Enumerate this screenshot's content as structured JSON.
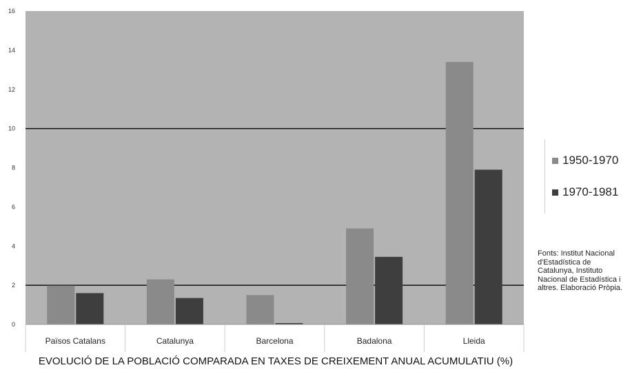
{
  "chart_data": {
    "type": "bar",
    "title": "EVOLUCIÓ DE LA POBLACIÓ COMPARADA EN TAXES DE CREIXEMENT ANUAL ACUMULATIU (%)",
    "xlabel": "",
    "ylabel": "",
    "categories": [
      "Països Catalans",
      "Catalunya",
      "Barcelona",
      "Badalona",
      "Lleida"
    ],
    "series": [
      {
        "name": "1950-1970",
        "color": "#8a8a8a",
        "values": [
          1.98,
          2.3,
          1.5,
          4.9,
          13.4
        ]
      },
      {
        "name": "1970-1981",
        "color": "#3e3e3e",
        "values": [
          1.6,
          1.35,
          0.07,
          3.45,
          7.9
        ]
      }
    ],
    "ylim": [
      0,
      16
    ],
    "yticks": [
      0,
      2,
      4,
      6,
      8,
      10,
      12,
      14,
      16
    ],
    "reference_lines": [
      2,
      10
    ],
    "grid": false,
    "legend_position": "right",
    "plot_background": "#b3b3b3",
    "source_note": "Fonts: Institut Nacional d'Estadística de Catalunya, Instituto Nacional de Estadística i altres. Elaboració Pròpia."
  }
}
